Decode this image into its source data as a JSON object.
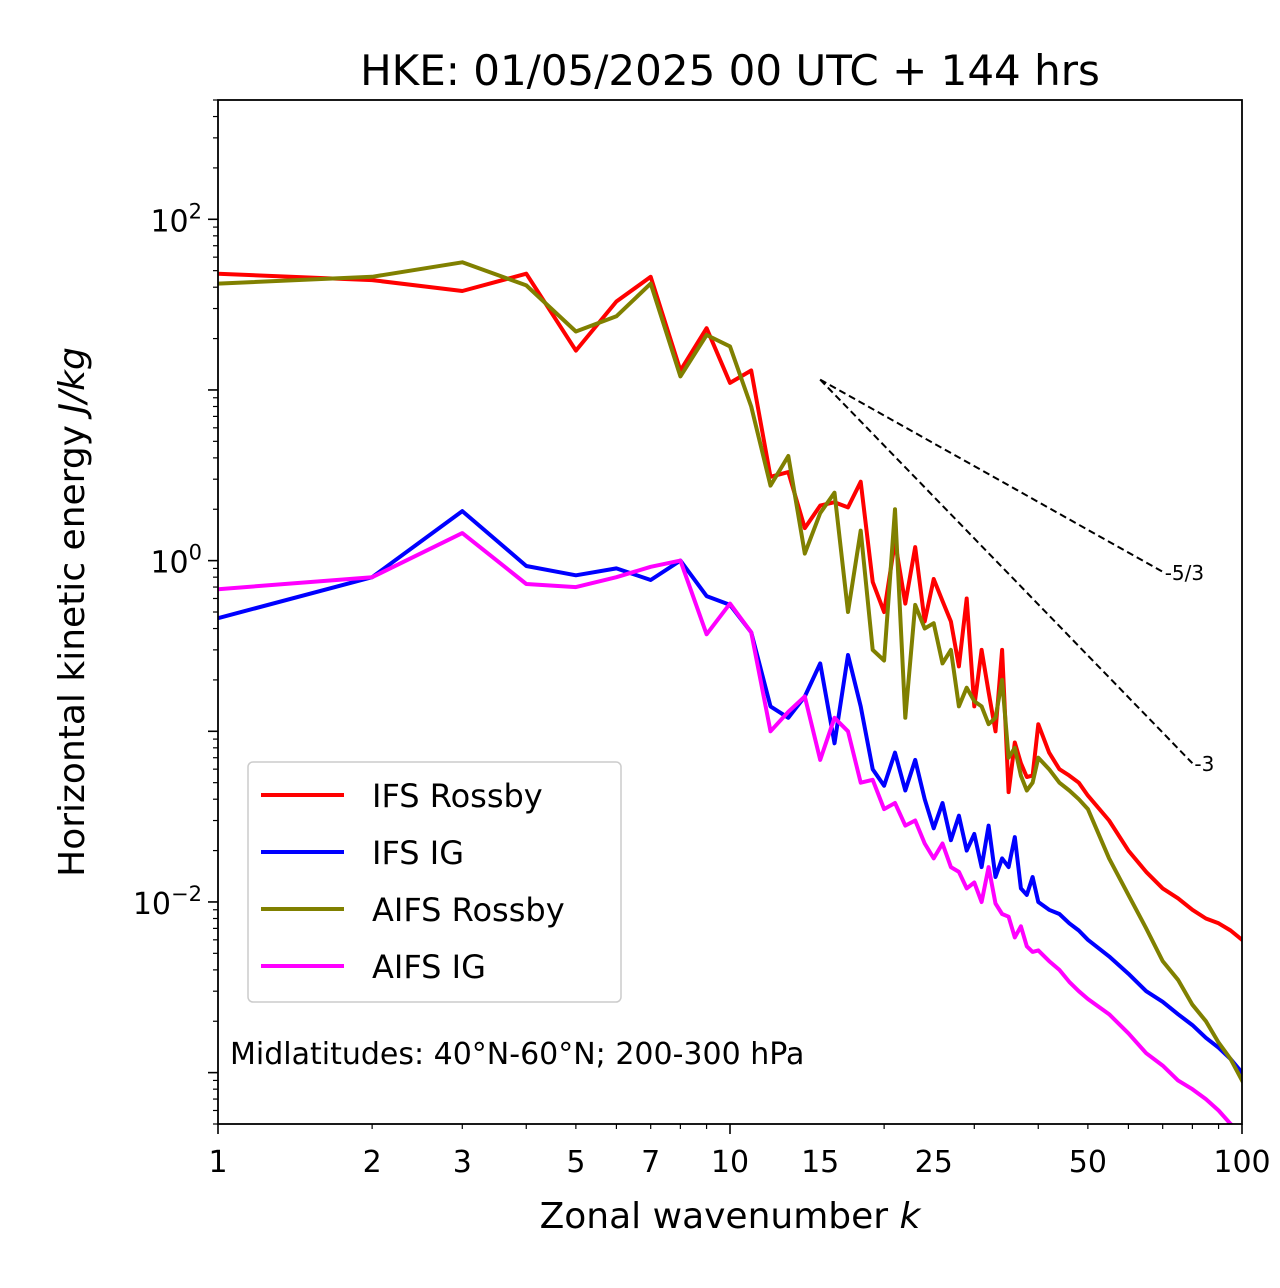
{
  "chart_data": {
    "type": "line",
    "title": "HKE: 01/05/2025 00 UTC + 144 hrs",
    "xlabel_text": "Zonal wavenumber ",
    "xlabel_var": "k",
    "ylabel_text": "Horizontal kinetic energy ",
    "ylabel_var": "J/kg",
    "xscale": "log",
    "yscale": "log",
    "xlim": [
      1,
      100
    ],
    "ylim": [
      0.0005,
      500
    ],
    "x_tick_labels": [
      "1",
      "2",
      "3",
      "5",
      "7",
      "10",
      "15",
      "25",
      "50",
      "100"
    ],
    "x_tick_values": [
      1,
      2,
      3,
      5,
      7,
      10,
      15,
      25,
      50,
      100
    ],
    "y_ticks": [
      {
        "value": 100,
        "base": "10",
        "exp": "2"
      },
      {
        "value": 1,
        "base": "10",
        "exp": "0"
      },
      {
        "value": 0.01,
        "base": "10",
        "exp": "−2"
      }
    ],
    "legend_position": "lower-left",
    "annotation": "Midlatitudes: 40°N-60°N; 200-300 hPa",
    "slope_lines": [
      {
        "label": "-5/3",
        "x": [
          15,
          70
        ],
        "y": [
          11.5,
          0.86
        ]
      },
      {
        "label": "-3",
        "x": [
          15,
          80
        ],
        "y": [
          11.5,
          0.065
        ]
      }
    ],
    "series": [
      {
        "name": "IFS Rossby",
        "color": "#ff0000",
        "x": [
          1,
          2,
          3,
          4,
          5,
          6,
          7,
          8,
          9,
          10,
          11,
          12,
          13,
          14,
          15,
          16,
          17,
          18,
          19,
          20,
          21,
          22,
          23,
          24,
          25,
          26,
          27,
          28,
          29,
          30,
          31,
          32,
          33,
          34,
          35,
          36,
          37,
          38,
          39,
          40,
          42,
          44,
          46,
          48,
          50,
          55,
          60,
          65,
          70,
          75,
          80,
          85,
          90,
          95,
          100
        ],
        "y": [
          48,
          44,
          38,
          48,
          17,
          33,
          46,
          13,
          23,
          11,
          13,
          3.1,
          3.3,
          1.55,
          2.1,
          2.2,
          2.05,
          2.9,
          0.75,
          0.5,
          1.3,
          0.56,
          1.2,
          0.44,
          0.78,
          0.58,
          0.44,
          0.24,
          0.6,
          0.14,
          0.3,
          0.17,
          0.1,
          0.3,
          0.044,
          0.086,
          0.065,
          0.054,
          0.055,
          0.11,
          0.075,
          0.06,
          0.055,
          0.05,
          0.042,
          0.03,
          0.02,
          0.015,
          0.012,
          0.0105,
          0.009,
          0.008,
          0.0075,
          0.0068,
          0.006
        ]
      },
      {
        "name": "IFS IG",
        "color": "#0000ff",
        "x": [
          1,
          2,
          3,
          4,
          5,
          6,
          7,
          8,
          9,
          10,
          11,
          12,
          13,
          14,
          15,
          16,
          17,
          18,
          19,
          20,
          21,
          22,
          23,
          24,
          25,
          26,
          27,
          28,
          29,
          30,
          31,
          32,
          33,
          34,
          35,
          36,
          37,
          38,
          39,
          40,
          42,
          44,
          46,
          48,
          50,
          55,
          60,
          65,
          70,
          75,
          80,
          85,
          90,
          95,
          100
        ],
        "y": [
          0.46,
          0.8,
          1.95,
          0.93,
          0.82,
          0.9,
          0.77,
          1.0,
          0.62,
          0.55,
          0.38,
          0.14,
          0.12,
          0.16,
          0.25,
          0.085,
          0.28,
          0.14,
          0.06,
          0.048,
          0.075,
          0.045,
          0.068,
          0.04,
          0.027,
          0.038,
          0.023,
          0.032,
          0.02,
          0.025,
          0.016,
          0.028,
          0.014,
          0.018,
          0.016,
          0.024,
          0.012,
          0.011,
          0.014,
          0.01,
          0.009,
          0.0085,
          0.0075,
          0.0068,
          0.006,
          0.0048,
          0.0038,
          0.003,
          0.0026,
          0.0022,
          0.0019,
          0.0016,
          0.0014,
          0.0012,
          0.001
        ]
      },
      {
        "name": "AIFS Rossby",
        "color": "#808000",
        "x": [
          1,
          2,
          3,
          4,
          5,
          6,
          7,
          8,
          9,
          10,
          11,
          12,
          13,
          14,
          15,
          16,
          17,
          18,
          19,
          20,
          21,
          22,
          23,
          24,
          25,
          26,
          27,
          28,
          29,
          30,
          31,
          32,
          33,
          34,
          35,
          36,
          37,
          38,
          39,
          40,
          42,
          44,
          46,
          48,
          50,
          55,
          60,
          65,
          70,
          75,
          80,
          85,
          90,
          95,
          100
        ],
        "y": [
          42,
          46,
          56,
          41,
          22,
          27,
          42,
          12,
          21,
          18,
          8,
          2.75,
          4.1,
          1.1,
          1.9,
          2.5,
          0.5,
          1.5,
          0.3,
          0.26,
          2.0,
          0.12,
          0.55,
          0.4,
          0.43,
          0.25,
          0.3,
          0.14,
          0.18,
          0.15,
          0.14,
          0.11,
          0.12,
          0.2,
          0.07,
          0.08,
          0.055,
          0.045,
          0.05,
          0.07,
          0.06,
          0.05,
          0.045,
          0.04,
          0.035,
          0.018,
          0.011,
          0.007,
          0.0045,
          0.0035,
          0.0025,
          0.002,
          0.0015,
          0.0012,
          0.0009
        ]
      },
      {
        "name": "AIFS IG",
        "color": "#ff00ff",
        "x": [
          1,
          2,
          3,
          4,
          5,
          6,
          7,
          8,
          9,
          10,
          11,
          12,
          13,
          14,
          15,
          16,
          17,
          18,
          19,
          20,
          21,
          22,
          23,
          24,
          25,
          26,
          27,
          28,
          29,
          30,
          31,
          32,
          33,
          34,
          35,
          36,
          37,
          38,
          39,
          40,
          42,
          44,
          46,
          48,
          50,
          55,
          60,
          65,
          70,
          75,
          80,
          85,
          90,
          95,
          100
        ],
        "y": [
          0.68,
          0.8,
          1.45,
          0.73,
          0.7,
          0.8,
          0.92,
          1.0,
          0.37,
          0.56,
          0.38,
          0.1,
          0.13,
          0.16,
          0.068,
          0.12,
          0.1,
          0.05,
          0.052,
          0.035,
          0.038,
          0.028,
          0.03,
          0.022,
          0.018,
          0.022,
          0.016,
          0.015,
          0.012,
          0.013,
          0.01,
          0.016,
          0.0098,
          0.0085,
          0.0082,
          0.0062,
          0.0072,
          0.0055,
          0.0051,
          0.0052,
          0.0045,
          0.004,
          0.0034,
          0.003,
          0.0027,
          0.0022,
          0.0017,
          0.0013,
          0.0011,
          0.0009,
          0.0008,
          0.0007,
          0.0006,
          0.0005,
          0.00045
        ]
      }
    ]
  }
}
